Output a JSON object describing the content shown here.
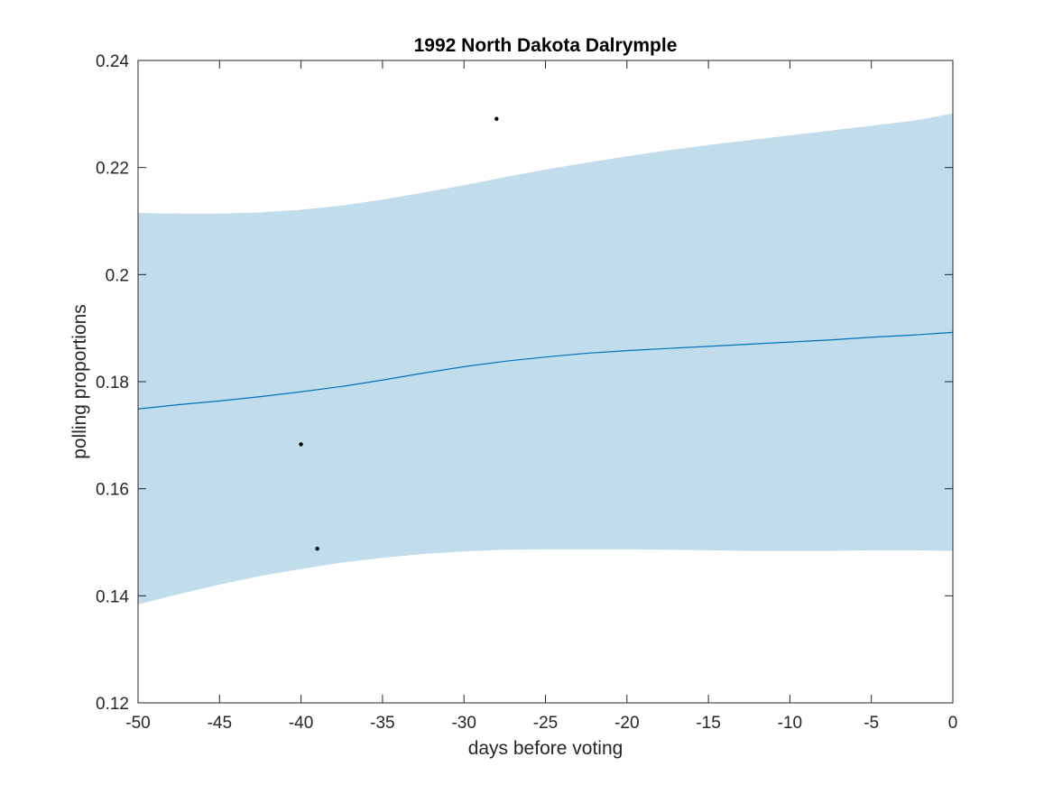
{
  "chart_data": {
    "type": "line",
    "title": "1992 North Dakota Dalrymple",
    "xlabel": "days before voting",
    "ylabel": "polling proportions",
    "xlim": [
      -50,
      0
    ],
    "ylim": [
      0.12,
      0.24
    ],
    "x_ticks": [
      -50,
      -45,
      -40,
      -35,
      -30,
      -25,
      -20,
      -15,
      -10,
      -5,
      0
    ],
    "x_tick_labels": [
      "-50",
      "-45",
      "-40",
      "-35",
      "-30",
      "-25",
      "-20",
      "-15",
      "-10",
      "-5",
      "0"
    ],
    "y_ticks": [
      0.12,
      0.14,
      0.16,
      0.18,
      0.2,
      0.22,
      0.24
    ],
    "y_tick_labels": [
      "0.12",
      "0.14",
      "0.16",
      "0.18",
      "0.2",
      "0.22",
      "0.24"
    ],
    "grid": false,
    "colors": {
      "band": "#c1dcea",
      "line": "#0072bd",
      "points": "#000000",
      "axes": "#262626"
    },
    "band": {
      "x": [
        -50,
        -47.5,
        -45,
        -42.5,
        -40,
        -37.5,
        -35,
        -32.5,
        -30,
        -27.5,
        -25,
        -22.5,
        -20,
        -17.5,
        -15,
        -12.5,
        -10,
        -7.5,
        -5,
        -2.5,
        0
      ],
      "upper": [
        0.2115,
        0.2114,
        0.2114,
        0.2116,
        0.2121,
        0.2129,
        0.214,
        0.2153,
        0.2167,
        0.2182,
        0.2196,
        0.2209,
        0.2221,
        0.2232,
        0.2242,
        0.2251,
        0.226,
        0.2269,
        0.2278,
        0.2287,
        0.2301
      ],
      "lower": [
        0.1384,
        0.1403,
        0.1421,
        0.1437,
        0.145,
        0.1462,
        0.1471,
        0.1478,
        0.1483,
        0.1486,
        0.1487,
        0.1487,
        0.1487,
        0.1486,
        0.1485,
        0.1484,
        0.1484,
        0.1484,
        0.1485,
        0.1485,
        0.1484
      ]
    },
    "series": [
      {
        "x": [
          -50,
          -47.5,
          -45,
          -42.5,
          -40,
          -37.5,
          -35,
          -32.5,
          -30,
          -27.5,
          -25,
          -22.5,
          -20,
          -17.5,
          -15,
          -12.5,
          -10,
          -7.5,
          -5,
          -2.5,
          0
        ],
        "y": [
          0.1749,
          0.1757,
          0.1764,
          0.1772,
          0.1781,
          0.1791,
          0.1803,
          0.1816,
          0.1828,
          0.1838,
          0.1846,
          0.1853,
          0.1858,
          0.1862,
          0.1866,
          0.187,
          0.1874,
          0.1878,
          0.1883,
          0.1887,
          0.1892
        ]
      }
    ],
    "points": [
      {
        "x": -40,
        "y": 0.1683
      },
      {
        "x": -39,
        "y": 0.1488
      },
      {
        "x": -28,
        "y": 0.2291
      }
    ]
  }
}
